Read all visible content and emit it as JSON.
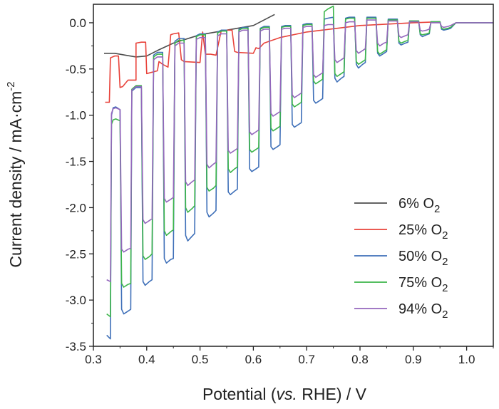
{
  "chart_data": {
    "type": "line",
    "title": "",
    "xlabel": {
      "prefix": "Potential (",
      "italic": "vs.",
      "suffix": " RHE) / V"
    },
    "ylabel": {
      "main": "Current density / mA·cm",
      "sup": "-2"
    },
    "xlim": [
      0.3,
      1.05
    ],
    "ylim": [
      -3.5,
      0.2
    ],
    "xticks": [
      "0.3",
      "0.4",
      "0.5",
      "0.6",
      "0.7",
      "0.8",
      "0.9",
      "1.0"
    ],
    "yticks": [
      "0.0",
      "-0.5",
      "-1.0",
      "-1.5",
      "-2.0",
      "-2.5",
      "-3.0",
      "-3.5"
    ],
    "grid": false,
    "legend_position": "bottom-right",
    "legend": [
      {
        "label": "6% O",
        "sub": "2",
        "color": "#4d4d4d"
      },
      {
        "label": "25% O",
        "sub": "2",
        "color": "#e8423a"
      },
      {
        "label": "50% O",
        "sub": "2",
        "color": "#3e6fb8"
      },
      {
        "label": "75% O",
        "sub": "2",
        "color": "#3cb54a"
      },
      {
        "label": "94% O",
        "sub": "2",
        "color": "#9467bd"
      }
    ],
    "series": [
      {
        "color": "#4d4d4d",
        "x": [
          0.32,
          0.34,
          0.36,
          0.38,
          0.4,
          0.42,
          0.45,
          0.5,
          0.55,
          0.6,
          0.63,
          0.64
        ],
        "y": [
          -0.33,
          -0.33,
          -0.35,
          -0.37,
          -0.36,
          -0.3,
          -0.22,
          -0.13,
          -0.08,
          -0.03,
          0.06,
          0.09
        ]
      },
      {
        "color": "#e8423a",
        "x": [
          0.322,
          0.33,
          0.332,
          0.34,
          0.347,
          0.35,
          0.355,
          0.365,
          0.38,
          0.38,
          0.39,
          0.398,
          0.4,
          0.42,
          0.423,
          0.43,
          0.44,
          0.445,
          0.45,
          0.46,
          0.465,
          0.47,
          0.5,
          0.505,
          0.51,
          0.52,
          0.53,
          0.54,
          0.56,
          0.565,
          0.57,
          0.6,
          0.605,
          0.61,
          0.62,
          0.65,
          0.7,
          0.8,
          0.9,
          0.95
        ],
        "y": [
          -0.86,
          -0.86,
          -0.38,
          -0.36,
          -0.36,
          -0.7,
          -0.69,
          -0.62,
          -0.62,
          -0.22,
          -0.21,
          -0.21,
          -0.55,
          -0.52,
          -0.42,
          -0.45,
          -0.48,
          -0.13,
          -0.12,
          -0.11,
          -0.4,
          -0.42,
          -0.43,
          -0.1,
          -0.34,
          -0.34,
          -0.35,
          -0.08,
          -0.08,
          -0.31,
          -0.32,
          -0.33,
          -0.27,
          -0.28,
          -0.22,
          -0.16,
          -0.1,
          -0.03,
          0.0,
          0.01
        ]
      },
      {
        "color": "#3e6fb8",
        "x": [
          0.325,
          0.332,
          0.334,
          0.337,
          0.342,
          0.35,
          0.353,
          0.357,
          0.365,
          0.37,
          0.372,
          0.38,
          0.39,
          0.393,
          0.397,
          0.405,
          0.41,
          0.413,
          0.42,
          0.43,
          0.433,
          0.437,
          0.445,
          0.45,
          0.453,
          0.46,
          0.47,
          0.473,
          0.477,
          0.485,
          0.49,
          0.493,
          0.5,
          0.51,
          0.513,
          0.517,
          0.525,
          0.53,
          0.533,
          0.54,
          0.55,
          0.553,
          0.557,
          0.565,
          0.57,
          0.573,
          0.58,
          0.59,
          0.593,
          0.597,
          0.605,
          0.61,
          0.613,
          0.62,
          0.63,
          0.633,
          0.637,
          0.645,
          0.65,
          0.653,
          0.66,
          0.67,
          0.673,
          0.677,
          0.685,
          0.69,
          0.693,
          0.7,
          0.71,
          0.713,
          0.717,
          0.725,
          0.73,
          0.733,
          0.74,
          0.75,
          0.753,
          0.757,
          0.765,
          0.77,
          0.773,
          0.78,
          0.79,
          0.793,
          0.797,
          0.805,
          0.81,
          0.813,
          0.82,
          0.83,
          0.833,
          0.837,
          0.845,
          0.85,
          0.853,
          0.86,
          0.87,
          0.873,
          0.877,
          0.885,
          0.89,
          0.893,
          0.9,
          0.91,
          0.913,
          0.917,
          0.925,
          0.93,
          0.933,
          0.94,
          0.95,
          0.953,
          0.957,
          0.965,
          0.97,
          0.98,
          1.0,
          1.05
        ],
        "y": [
          -3.38,
          -3.42,
          -1.0,
          -0.92,
          -0.91,
          -0.94,
          -3.1,
          -3.15,
          -3.12,
          -3.1,
          -0.74,
          -0.7,
          -0.7,
          -2.8,
          -2.84,
          -2.8,
          -2.78,
          -0.35,
          -0.32,
          -0.32,
          -2.55,
          -2.6,
          -2.56,
          -2.55,
          -0.2,
          -0.17,
          -0.17,
          -2.3,
          -2.36,
          -2.31,
          -2.28,
          -0.14,
          -0.12,
          -0.12,
          -2.05,
          -2.1,
          -2.06,
          -2.03,
          -0.1,
          -0.08,
          -0.08,
          -1.83,
          -1.86,
          -1.82,
          -1.8,
          -0.07,
          -0.05,
          -0.05,
          -1.58,
          -1.61,
          -1.58,
          -1.56,
          -0.06,
          -0.04,
          -0.04,
          -1.34,
          -1.37,
          -1.34,
          -1.32,
          -0.04,
          -0.03,
          -0.03,
          -1.1,
          -1.13,
          -1.1,
          -1.08,
          -0.02,
          -0.01,
          -0.01,
          -0.84,
          -0.87,
          -0.84,
          -0.82,
          0.04,
          0.05,
          0.06,
          -0.6,
          -0.64,
          -0.6,
          -0.58,
          0.05,
          0.06,
          0.06,
          -0.45,
          -0.49,
          -0.45,
          -0.43,
          0.06,
          0.06,
          0.06,
          -0.33,
          -0.36,
          -0.33,
          -0.31,
          0.04,
          0.04,
          0.04,
          -0.22,
          -0.24,
          -0.22,
          -0.21,
          0.02,
          0.02,
          0.02,
          -0.13,
          -0.15,
          -0.13,
          -0.12,
          0.01,
          0.01,
          0.01,
          -0.07,
          -0.08,
          -0.07,
          -0.06,
          0.0,
          0.0,
          0.0
        ]
      },
      {
        "color": "#3cb54a",
        "x": [
          0.325,
          0.332,
          0.334,
          0.337,
          0.342,
          0.35,
          0.353,
          0.357,
          0.365,
          0.37,
          0.372,
          0.38,
          0.39,
          0.393,
          0.397,
          0.405,
          0.41,
          0.413,
          0.42,
          0.43,
          0.433,
          0.437,
          0.445,
          0.45,
          0.453,
          0.46,
          0.47,
          0.473,
          0.477,
          0.485,
          0.49,
          0.493,
          0.5,
          0.51,
          0.513,
          0.517,
          0.525,
          0.53,
          0.533,
          0.54,
          0.55,
          0.553,
          0.557,
          0.565,
          0.57,
          0.573,
          0.58,
          0.59,
          0.593,
          0.597,
          0.605,
          0.61,
          0.613,
          0.62,
          0.63,
          0.633,
          0.637,
          0.645,
          0.65,
          0.653,
          0.66,
          0.67,
          0.673,
          0.677,
          0.685,
          0.69,
          0.693,
          0.7,
          0.71,
          0.713,
          0.717,
          0.725,
          0.73,
          0.733,
          0.74,
          0.75,
          0.753,
          0.757,
          0.765,
          0.77,
          0.773,
          0.78,
          0.79,
          0.793,
          0.797,
          0.805,
          0.81,
          0.813,
          0.82,
          0.83,
          0.833,
          0.837,
          0.845,
          0.85,
          0.853,
          0.86,
          0.87,
          0.873,
          0.877,
          0.885,
          0.89,
          0.893,
          0.9,
          0.91,
          0.913,
          0.917,
          0.925,
          0.93,
          0.933,
          0.94,
          0.95,
          0.953,
          0.957,
          0.965,
          0.97,
          0.98,
          1.0,
          1.05
        ],
        "y": [
          -3.15,
          -3.18,
          -1.1,
          -1.05,
          -1.04,
          -1.06,
          -2.82,
          -2.86,
          -2.83,
          -2.82,
          -0.72,
          -0.68,
          -0.68,
          -2.52,
          -2.56,
          -2.53,
          -2.5,
          -0.37,
          -0.34,
          -0.34,
          -2.25,
          -2.3,
          -2.26,
          -2.24,
          -0.22,
          -0.19,
          -0.19,
          -2.0,
          -2.05,
          -2.01,
          -1.98,
          -0.15,
          -0.13,
          -0.13,
          -1.78,
          -1.82,
          -1.79,
          -1.76,
          -0.11,
          -0.09,
          -0.09,
          -1.58,
          -1.62,
          -1.58,
          -1.56,
          -0.08,
          -0.06,
          -0.06,
          -1.37,
          -1.4,
          -1.37,
          -1.35,
          -0.07,
          -0.05,
          -0.05,
          -1.14,
          -1.17,
          -1.14,
          -1.12,
          -0.05,
          -0.04,
          -0.04,
          -0.88,
          -0.91,
          -0.88,
          -0.86,
          -0.03,
          -0.02,
          -0.02,
          -0.63,
          -0.66,
          -0.63,
          -0.61,
          0.12,
          0.15,
          0.18,
          -0.55,
          -0.58,
          -0.55,
          -0.53,
          0.04,
          0.05,
          0.05,
          -0.42,
          -0.45,
          -0.42,
          -0.4,
          0.05,
          0.05,
          0.05,
          -0.31,
          -0.34,
          -0.31,
          -0.29,
          0.03,
          0.03,
          0.03,
          -0.2,
          -0.22,
          -0.2,
          -0.19,
          0.02,
          0.02,
          0.02,
          -0.12,
          -0.13,
          -0.12,
          -0.11,
          0.01,
          0.01,
          0.01,
          -0.06,
          -0.07,
          -0.06,
          -0.05,
          0.0,
          0.0,
          0.0
        ]
      },
      {
        "color": "#9467bd",
        "x": [
          0.325,
          0.332,
          0.334,
          0.337,
          0.342,
          0.35,
          0.353,
          0.357,
          0.365,
          0.37,
          0.372,
          0.38,
          0.39,
          0.393,
          0.397,
          0.405,
          0.41,
          0.413,
          0.42,
          0.43,
          0.433,
          0.437,
          0.445,
          0.45,
          0.453,
          0.46,
          0.47,
          0.473,
          0.477,
          0.485,
          0.49,
          0.493,
          0.5,
          0.51,
          0.513,
          0.517,
          0.525,
          0.53,
          0.533,
          0.54,
          0.55,
          0.553,
          0.557,
          0.565,
          0.57,
          0.573,
          0.58,
          0.59,
          0.593,
          0.597,
          0.605,
          0.61,
          0.613,
          0.62,
          0.63,
          0.633,
          0.637,
          0.645,
          0.65,
          0.653,
          0.66,
          0.67,
          0.673,
          0.677,
          0.685,
          0.69,
          0.693,
          0.7,
          0.71,
          0.713,
          0.717,
          0.725,
          0.73,
          0.733,
          0.74,
          0.75,
          0.753,
          0.757,
          0.765,
          0.77,
          0.773,
          0.78,
          0.79,
          0.793,
          0.797,
          0.805,
          0.81,
          0.813,
          0.82,
          0.83,
          0.833,
          0.837,
          0.845,
          0.85,
          0.853,
          0.86,
          0.87,
          0.873,
          0.877,
          0.885,
          0.89,
          0.893,
          0.9,
          0.91,
          0.913,
          0.917,
          0.925,
          0.93,
          0.933,
          0.94,
          0.95,
          0.953,
          0.957,
          0.965,
          0.97,
          0.98,
          1.0,
          1.05
        ],
        "y": [
          -2.78,
          -2.8,
          -0.98,
          -0.93,
          -0.92,
          -0.94,
          -2.45,
          -2.48,
          -2.45,
          -2.44,
          -0.73,
          -0.69,
          -0.69,
          -2.13,
          -2.17,
          -2.14,
          -2.12,
          -0.4,
          -0.37,
          -0.37,
          -1.9,
          -1.94,
          -1.91,
          -1.89,
          -0.25,
          -0.22,
          -0.22,
          -1.72,
          -1.76,
          -1.72,
          -1.7,
          -0.18,
          -0.16,
          -0.16,
          -1.53,
          -1.57,
          -1.53,
          -1.51,
          -0.14,
          -0.12,
          -0.12,
          -1.38,
          -1.41,
          -1.38,
          -1.36,
          -0.1,
          -0.08,
          -0.08,
          -1.18,
          -1.21,
          -1.18,
          -1.16,
          -0.09,
          -0.07,
          -0.07,
          -0.98,
          -1.01,
          -0.98,
          -0.96,
          -0.07,
          -0.06,
          -0.06,
          -0.78,
          -0.81,
          -0.78,
          -0.76,
          -0.05,
          -0.04,
          -0.04,
          -0.56,
          -0.59,
          -0.56,
          -0.54,
          -0.03,
          -0.02,
          -0.02,
          -0.4,
          -0.43,
          -0.4,
          -0.38,
          0.0,
          0.01,
          0.01,
          -0.3,
          -0.33,
          -0.3,
          -0.28,
          0.03,
          0.03,
          0.03,
          -0.22,
          -0.25,
          -0.22,
          -0.21,
          0.02,
          0.02,
          0.02,
          -0.14,
          -0.16,
          -0.14,
          -0.13,
          0.01,
          0.01,
          0.01,
          -0.08,
          -0.09,
          -0.08,
          -0.07,
          0.0,
          0.0,
          0.0,
          -0.04,
          -0.05,
          -0.04,
          -0.03,
          0.0,
          0.0,
          0.0
        ]
      }
    ]
  }
}
